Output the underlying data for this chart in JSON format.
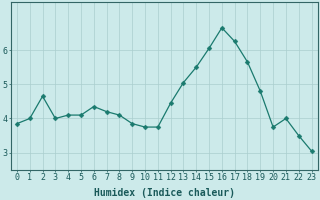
{
  "x": [
    0,
    1,
    2,
    3,
    4,
    5,
    6,
    7,
    8,
    9,
    10,
    11,
    12,
    13,
    14,
    15,
    16,
    17,
    18,
    19,
    20,
    21,
    22,
    23
  ],
  "y": [
    3.85,
    4.0,
    4.65,
    4.0,
    4.1,
    4.1,
    4.35,
    4.2,
    4.1,
    3.85,
    3.75,
    3.75,
    4.45,
    5.05,
    5.5,
    6.05,
    6.65,
    6.25,
    5.65,
    4.8,
    3.75,
    4.0,
    3.5,
    3.05
  ],
  "line_color": "#1a7a6e",
  "marker": "D",
  "marker_size": 2.5,
  "bg_color": "#cceaea",
  "grid_color_major": "#aacece",
  "grid_color_minor": "#bdd9d9",
  "xlabel": "Humidex (Indice chaleur)",
  "ylim": [
    2.5,
    7.4
  ],
  "xlim": [
    -0.5,
    23.5
  ],
  "yticks": [
    3,
    4,
    5,
    6
  ],
  "xticks": [
    0,
    1,
    2,
    3,
    4,
    5,
    6,
    7,
    8,
    9,
    10,
    11,
    12,
    13,
    14,
    15,
    16,
    17,
    18,
    19,
    20,
    21,
    22,
    23
  ],
  "tick_fontsize": 6,
  "xlabel_fontsize": 7
}
